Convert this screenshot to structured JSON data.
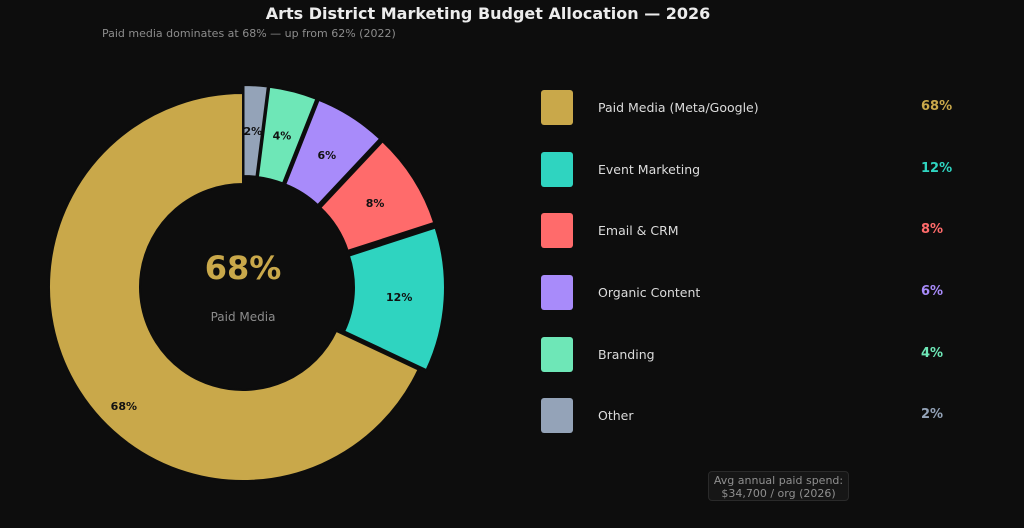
{
  "chart_data": {
    "type": "pie",
    "title": "Arts District Marketing Budget Allocation — 2026",
    "subtitle": "Paid media dominates at 68% — up from 62% (2022)",
    "categories": [
      "Paid Media (Meta/Google)",
      "Event Marketing",
      "Email & CRM",
      "Organic Content",
      "Branding",
      "Other"
    ],
    "values": [
      68,
      12,
      8,
      6,
      4,
      2
    ],
    "slice_labels": [
      "68%",
      "12%",
      "8%",
      "6%",
      "4%",
      "2%"
    ],
    "colors": [
      "#c9a84a",
      "#2fd4c0",
      "#ff6b6b",
      "#a88bfa",
      "#6ee7b7",
      "#94a3b8"
    ],
    "donut": true,
    "legend_position": "right",
    "center": {
      "value": "68%",
      "label": "Paid Media"
    }
  },
  "legend": [
    {
      "label": "Paid Media (Meta/Google)",
      "pct": "68%",
      "color": "#c9a84a"
    },
    {
      "label": "Event Marketing",
      "pct": "12%",
      "color": "#2fd4c0"
    },
    {
      "label": "Email & CRM",
      "pct": "8%",
      "color": "#ff6b6b"
    },
    {
      "label": "Organic Content",
      "pct": "6%",
      "color": "#a88bfa"
    },
    {
      "label": "Branding",
      "pct": "4%",
      "color": "#6ee7b7"
    },
    {
      "label": "Other",
      "pct": "2%",
      "color": "#94a3b8"
    }
  ],
  "note": {
    "line1": "Avg annual paid spend:",
    "line2": "$34,700 / org (2026)"
  }
}
